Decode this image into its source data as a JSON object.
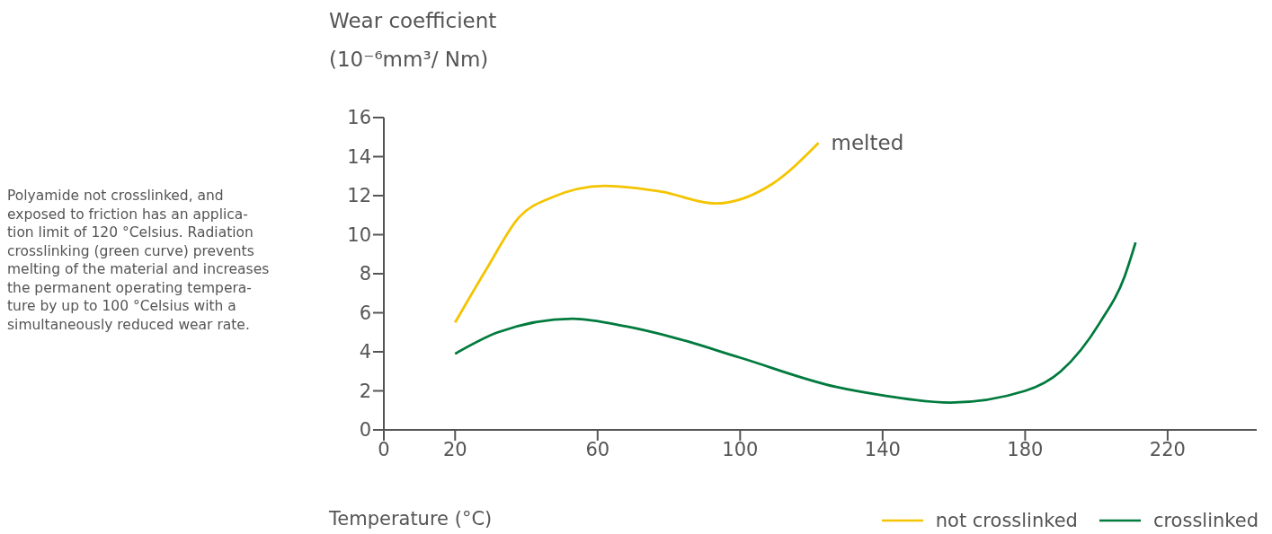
{
  "chart_data": {
    "type": "line",
    "ylabel": "Wear coefficient\n(10⁻⁶mm³/ Nm)",
    "xlabel": "Temperature (°C)",
    "xlim": [
      0,
      245
    ],
    "xticks": [
      0,
      20,
      60,
      100,
      140,
      180,
      220
    ],
    "ylim": [
      0,
      16
    ],
    "yticks": [
      0,
      2,
      4,
      6,
      8,
      10,
      12,
      14,
      16
    ],
    "grid": false,
    "legend": "bottom right",
    "marker": "none",
    "line_style": "solid",
    "series": [
      {
        "name": "not crosslinked",
        "color": "#f5c400",
        "x": [
          20,
          29,
          38,
          47,
          62,
          78,
          93,
          109,
          122
        ],
        "values": [
          5.5,
          8.3,
          10.9,
          11.9,
          12.5,
          12.2,
          11.6,
          12.6,
          14.7
        ]
      },
      {
        "name": "crosslinked",
        "color": "#007a3d",
        "x": [
          20,
          32,
          53,
          68,
          82,
          100,
          127,
          139,
          159,
          180,
          190,
          201,
          208,
          211
        ],
        "values": [
          3.9,
          5.0,
          5.7,
          5.3,
          4.7,
          3.7,
          2.2,
          1.8,
          1.4,
          2.0,
          3.0,
          5.5,
          7.9,
          9.6
        ]
      }
    ],
    "annotations": [
      {
        "text": "melted",
        "x": 122,
        "y": 14.7
      },
      "Polyamide not crosslinked, and\nexposed to friction has an applica-\ntion limit of 120 °Celsius. Radiation\ncrosslinking (green curve) prevents\nmelting of the material and increases\nthe permanent operating tempera-\nture by up to 100 °Celsius with a\nsimultaneously reduced wear rate."
    ]
  }
}
